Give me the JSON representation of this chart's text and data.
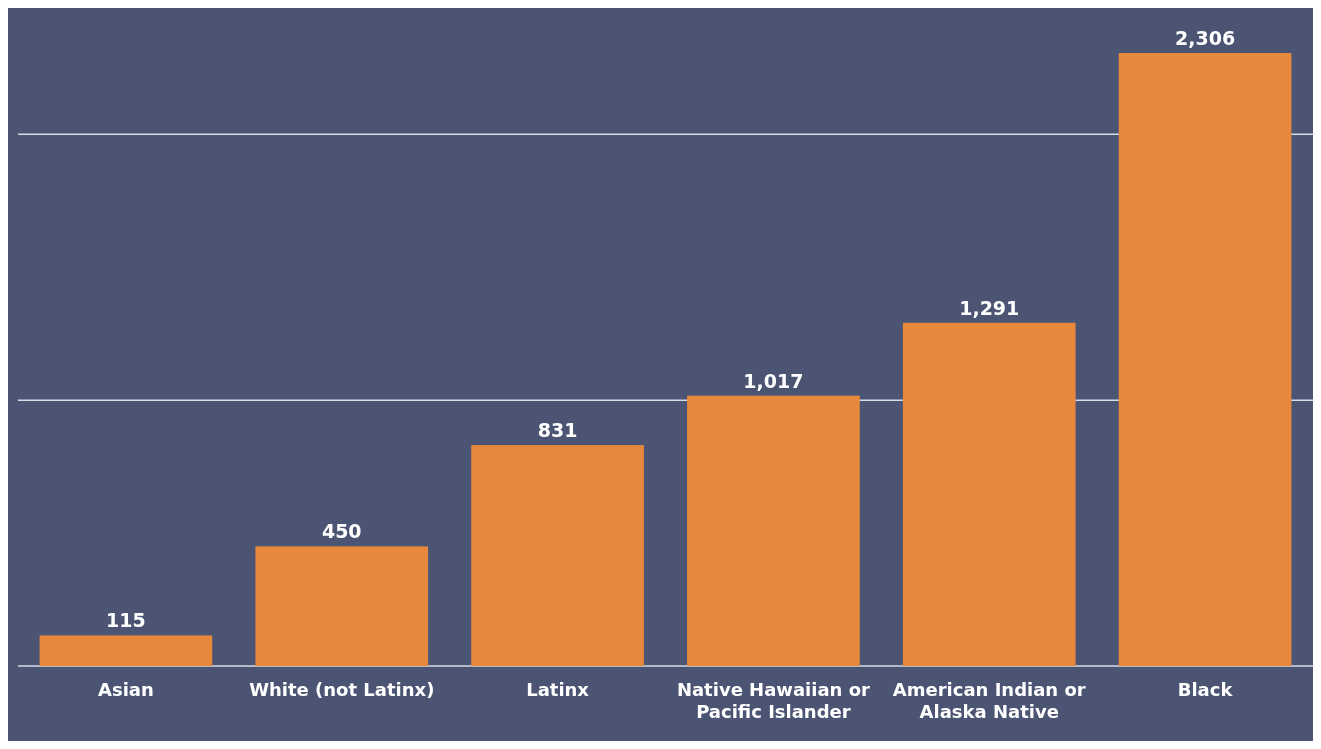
{
  "chart_data": {
    "type": "bar",
    "categories": [
      "Asian",
      "White (not Latinx)",
      "Latinx",
      "Native Hawaiian or Pacific Islander",
      "American Indian or Alaska Native",
      "Black"
    ],
    "values": [
      115,
      450,
      831,
      1017,
      1291,
      2306
    ],
    "value_labels": [
      "115",
      "450",
      "831",
      "1,017",
      "1,291",
      "2,306"
    ],
    "color": "#e8883c",
    "ref_lines": [
      {
        "axis": "y",
        "value": 1000,
        "color": "#d8dce6"
      },
      {
        "axis": "y",
        "value": 2000,
        "color": "#d8dce6"
      }
    ],
    "tick_labels": "x"
  }
}
